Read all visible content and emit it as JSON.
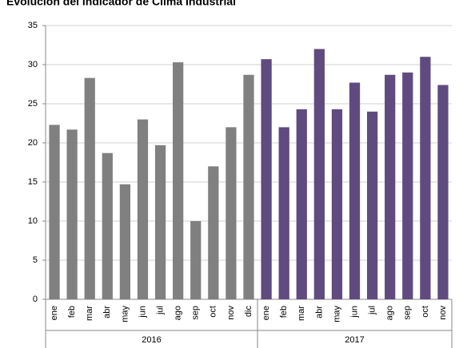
{
  "chart_data": {
    "type": "bar",
    "title": "Evolución del indicador de Clima Industrial",
    "groups": [
      {
        "label": "2016",
        "color": "#808080",
        "categories": [
          "ene",
          "feb",
          "mar",
          "abr",
          "may",
          "jun",
          "jul",
          "ago",
          "sep",
          "oct",
          "nov",
          "dic"
        ],
        "values": [
          22.3,
          21.7,
          28.3,
          18.7,
          14.7,
          23,
          19.7,
          30.3,
          10,
          17,
          22,
          28.7
        ]
      },
      {
        "label": "2017",
        "color": "#5f4b7f",
        "categories": [
          "ene",
          "feb",
          "mar",
          "abr",
          "may",
          "jun",
          "jul",
          "ago",
          "sep",
          "oct",
          "nov"
        ],
        "values": [
          30.7,
          22,
          24.3,
          32,
          24.3,
          27.7,
          24,
          28.7,
          29,
          31,
          27.4
        ]
      }
    ],
    "ylim": [
      0,
      35
    ],
    "yticks": [
      0,
      5,
      10,
      15,
      20,
      25,
      30,
      35
    ],
    "grid": true
  }
}
